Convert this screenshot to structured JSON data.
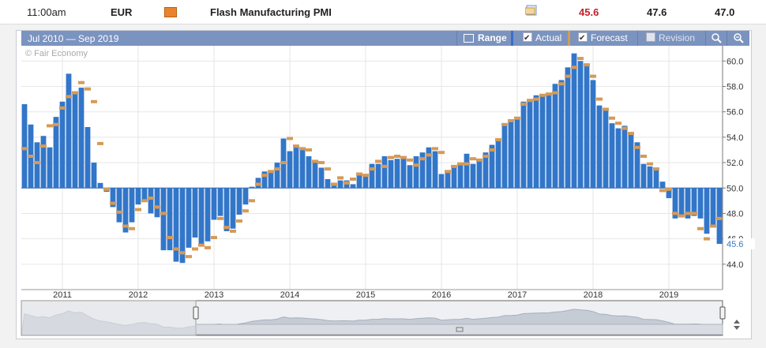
{
  "event": {
    "time": "11:00am",
    "currency": "EUR",
    "impact_icon": "folder-orange-icon",
    "title": "Flash Manufacturing PMI",
    "detail_icon": "detail-page-icon",
    "actual": "45.6",
    "forecast": "47.6",
    "previous": "47.0",
    "colors": {
      "actual": "#c4202a",
      "impact": "#e9842c"
    }
  },
  "chart_header": {
    "range_text": "Jul 2010 — Sep 2019",
    "range_button": "Range",
    "actual_label": "Actual",
    "actual_checked": true,
    "forecast_label": "Forecast",
    "forecast_checked": true,
    "revision_label": "Revision",
    "revision_checked": false,
    "zoom_in_icon": "zoom-in-icon",
    "zoom_out_icon": "zoom-out-icon",
    "range_icon": "calendar-icon"
  },
  "chart_data": {
    "type": "bar",
    "watermark": "© Fair Economy",
    "baseline": 50,
    "ylim": [
      42.0,
      61.2
    ],
    "y_ticks": [
      "44.0",
      "46.0",
      "48.0",
      "50.0",
      "52.0",
      "54.0",
      "56.0",
      "58.0",
      "60.0"
    ],
    "x_ticks": [
      "2011",
      "2012",
      "2013",
      "2014",
      "2015",
      "2016",
      "2017",
      "2018",
      "2019"
    ],
    "x_tick_months": [
      6,
      18,
      30,
      42,
      54,
      66,
      78,
      90,
      102
    ],
    "latest_value_label": "45.6",
    "colors": {
      "actual_bar": "#3276c9",
      "forecast_marker": "#d69a57",
      "latest_label": "#3276c9"
    },
    "start": "2010-07",
    "series": [
      {
        "name": "Actual",
        "values": [
          56.6,
          55.0,
          53.6,
          54.1,
          53.2,
          55.6,
          56.8,
          59.0,
          57.6,
          57.9,
          54.8,
          52.0,
          50.4,
          49.7,
          48.5,
          47.3,
          46.5,
          47.3,
          48.7,
          49.1,
          48.0,
          47.7,
          45.1,
          45.1,
          44.2,
          44.1,
          45.3,
          46.1,
          45.5,
          45.8,
          47.5,
          47.8,
          46.6,
          46.8,
          47.9,
          48.7,
          50.1,
          50.8,
          51.3,
          51.3,
          52.0,
          53.9,
          52.9,
          53.2,
          53.0,
          52.5,
          52.1,
          51.6,
          50.7,
          50.4,
          50.6,
          50.6,
          50.3,
          51.1,
          51.1,
          51.9,
          51.9,
          52.5,
          52.2,
          52.3,
          52.3,
          51.8,
          52.5,
          52.8,
          53.2,
          52.9,
          51.1,
          51.4,
          51.8,
          51.9,
          52.7,
          51.9,
          52.3,
          52.8,
          53.4,
          53.7,
          55.1,
          55.2,
          55.6,
          56.8,
          57.0,
          57.3,
          57.4,
          57.5,
          58.2,
          58.5,
          59.5,
          60.6,
          60.0,
          59.6,
          58.5,
          56.5,
          56.1,
          55.1,
          54.7,
          54.9,
          54.3,
          53.6,
          51.9,
          51.7,
          51.5,
          50.5,
          49.2,
          47.6,
          47.7,
          47.6,
          47.8,
          47.6,
          46.4,
          47.0,
          45.6
        ],
        "forecast": [
          53.1,
          52.5,
          52.0,
          53.3,
          54.9,
          55.0,
          56.3,
          57.2,
          57.5,
          58.3,
          57.8,
          56.8,
          53.5,
          49.9,
          48.8,
          48.1,
          47.0,
          46.8,
          48.3,
          49.0,
          49.2,
          48.5,
          48.0,
          46.1,
          45.2,
          44.9,
          44.6,
          45.2,
          45.5,
          45.3,
          46.1,
          47.6,
          46.9,
          46.6,
          47.4,
          48.2,
          49.0,
          50.3,
          51.0,
          51.3,
          51.5,
          52.0,
          53.9,
          53.3,
          53.1,
          53.0,
          52.1,
          52.0,
          51.5,
          50.3,
          50.8,
          50.4,
          50.7,
          51.1,
          51.0,
          51.5,
          52.1,
          51.7,
          52.4,
          52.5,
          52.4,
          52.2,
          51.8,
          52.3,
          52.6,
          53.1,
          52.8,
          51.3,
          51.7,
          51.9,
          51.9,
          52.3,
          52.2,
          52.5,
          53.0,
          53.8,
          55.0,
          55.3,
          55.5,
          56.6,
          56.9,
          57.0,
          57.3,
          57.4,
          57.5,
          58.2,
          58.8,
          59.5,
          60.2,
          59.7,
          58.8,
          57.0,
          56.2,
          55.5,
          55.1,
          54.7,
          54.3,
          53.2,
          52.5,
          51.9,
          51.5,
          49.8,
          49.9,
          48.0,
          47.8,
          48.0,
          48.0,
          46.8,
          46.0,
          47.0,
          47.6
        ]
      }
    ]
  }
}
